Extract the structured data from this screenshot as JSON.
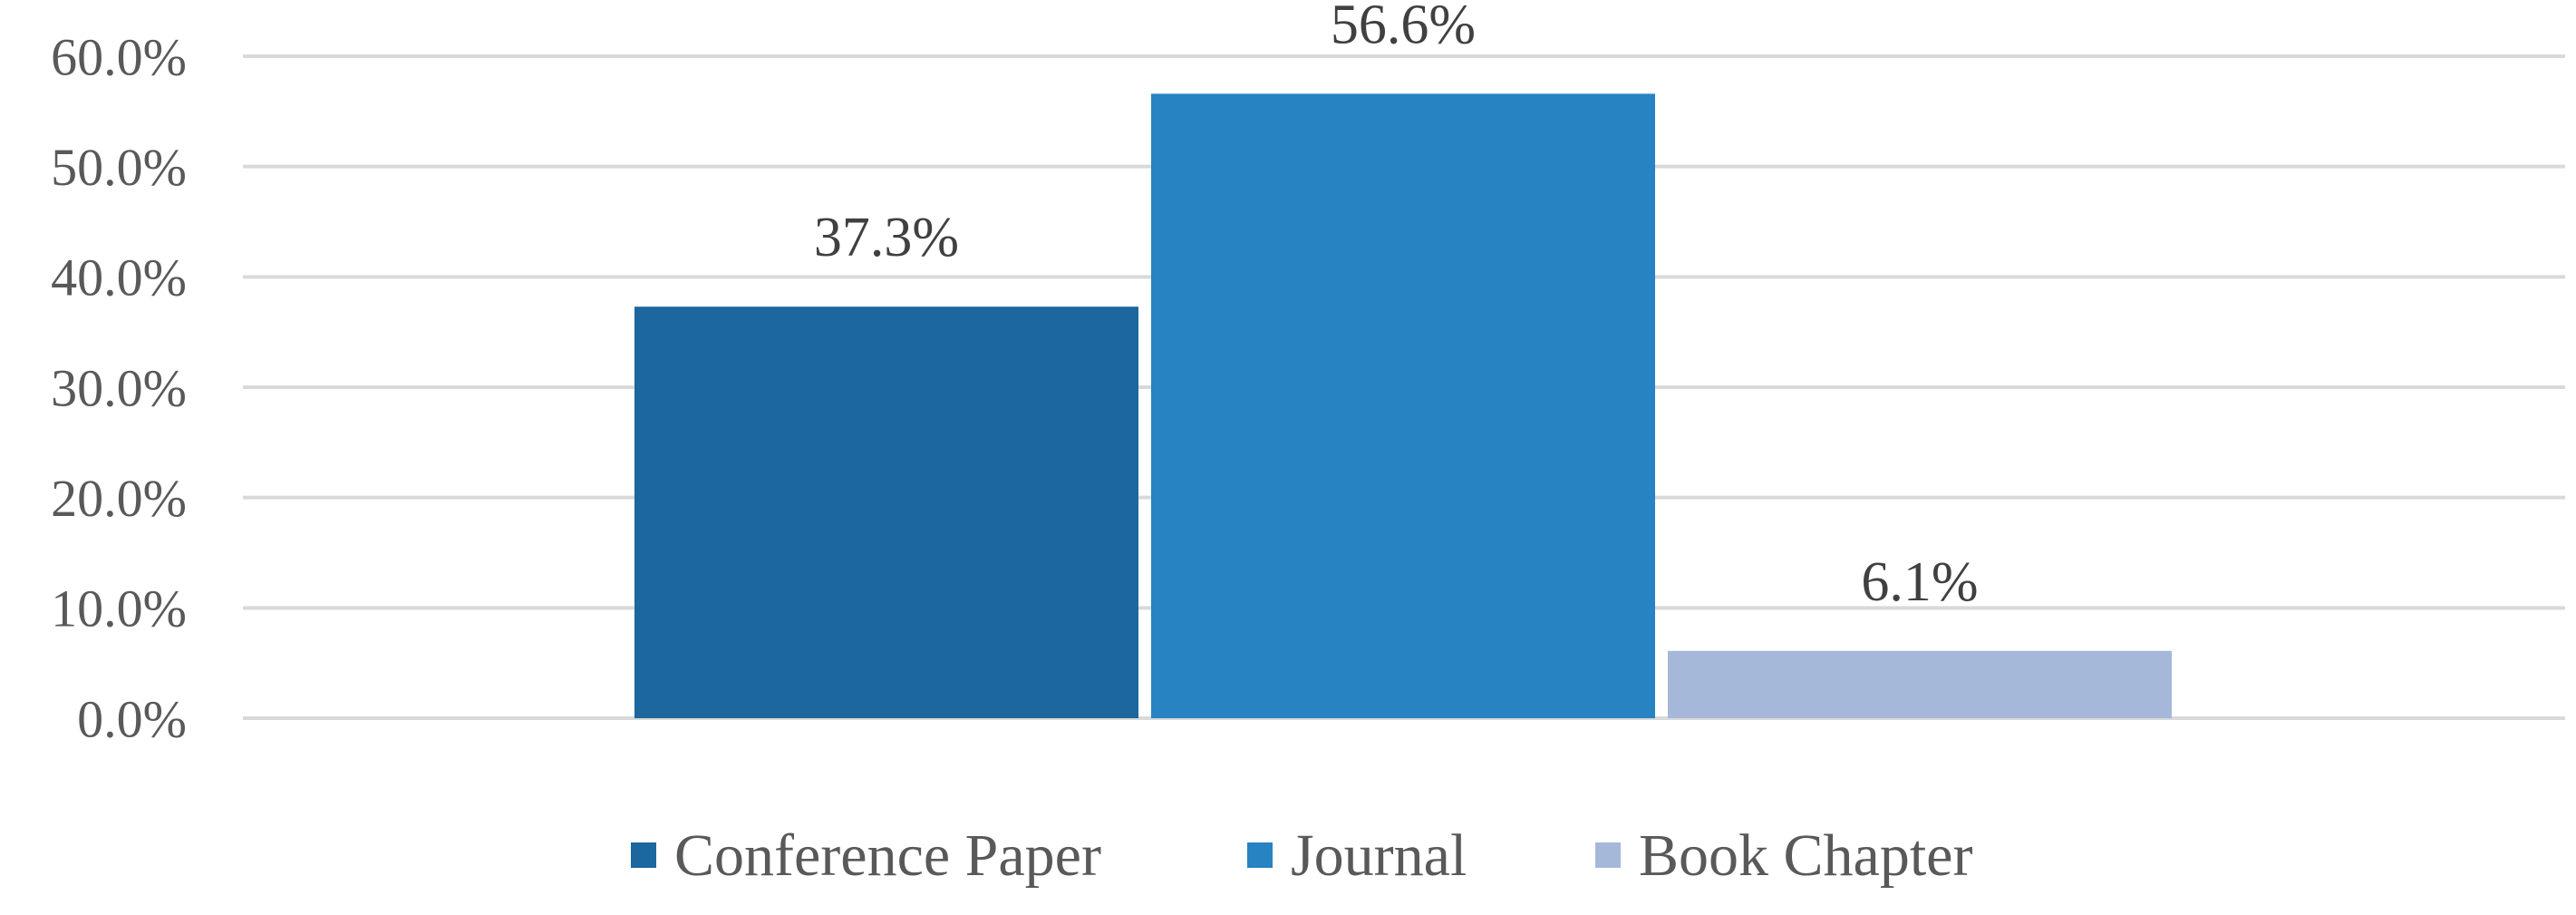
{
  "chart_data": {
    "type": "bar",
    "title": "",
    "xlabel": "",
    "ylabel": "",
    "ylim": [
      0,
      60
    ],
    "yticks": [
      0,
      10,
      20,
      30,
      40,
      50,
      60
    ],
    "ytick_labels": [
      "0.0%",
      "10.0%",
      "20.0%",
      "30.0%",
      "40.0%",
      "50.0%",
      "60.0%"
    ],
    "grid": true,
    "legend_position": "bottom",
    "series": [
      {
        "name": "Conference Paper",
        "value": 37.3,
        "label": "37.3%",
        "color": "#1b679e"
      },
      {
        "name": "Journal",
        "value": 56.6,
        "label": "56.6%",
        "color": "#2783c2"
      },
      {
        "name": "Book Chapter",
        "value": 6.1,
        "label": "6.1%",
        "color": "#a6b8d9"
      }
    ]
  }
}
